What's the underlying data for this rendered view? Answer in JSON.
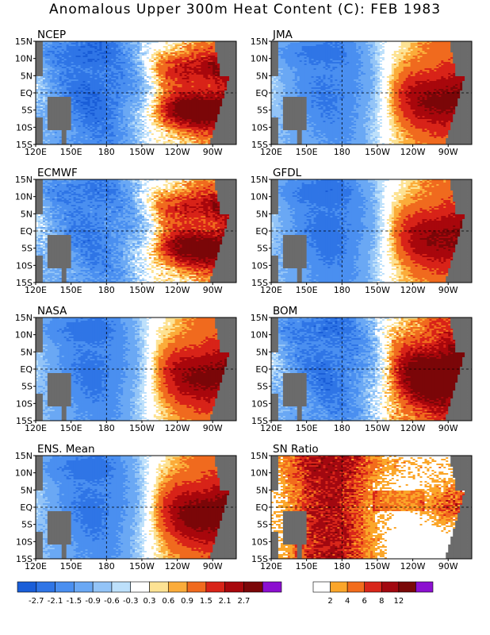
{
  "title": "Anomalous Upper 300m Heat Content (C): FEB 1983",
  "chart_data": {
    "type": "heatmap",
    "x_ticks": [
      "120E",
      "150E",
      "180",
      "150W",
      "120W",
      "90W"
    ],
    "y_ticks": [
      "15N",
      "10N",
      "5N",
      "EQ",
      "5S",
      "10S",
      "15S"
    ],
    "lon_range": [
      120,
      290
    ],
    "lat_range": [
      -15,
      15
    ],
    "panels": [
      {
        "name": "NCEP",
        "east_peak": 3.0,
        "west_min": -2.6,
        "warm_split": true,
        "noise": 0.6
      },
      {
        "name": "JMA",
        "east_peak": 2.4,
        "west_min": -2.2,
        "warm_split": false,
        "noise": 0.3
      },
      {
        "name": "ECMWF",
        "east_peak": 2.8,
        "west_min": -2.2,
        "warm_split": true,
        "noise": 0.7
      },
      {
        "name": "GFDL",
        "east_peak": 2.3,
        "west_min": -2.4,
        "warm_split": false,
        "noise": 0.3
      },
      {
        "name": "NASA",
        "east_peak": 2.4,
        "west_min": -2.3,
        "warm_split": false,
        "noise": 0.3
      },
      {
        "name": "BOM",
        "east_peak": 3.2,
        "west_min": -2.4,
        "warm_split": false,
        "noise": 0.7
      },
      {
        "name": "ENS. Mean",
        "east_peak": 2.6,
        "west_min": -2.3,
        "warm_split": false,
        "noise": 0.3
      }
    ],
    "sn_panel": {
      "name": "SN Ratio"
    },
    "anomaly_colorbar": {
      "labels": [
        "-2.7",
        "-2.1",
        "-1.5",
        "-0.9",
        "-0.6",
        "-0.3",
        "0.3",
        "0.6",
        "0.9",
        "1.5",
        "2.1",
        "2.7"
      ],
      "colors": [
        "#1a5ed8",
        "#2f75e6",
        "#4a8ff0",
        "#6aa8f4",
        "#93c4f7",
        "#bde0fb",
        "#ffffff",
        "#fde293",
        "#fbac3a",
        "#f06a1e",
        "#d82318",
        "#a8070c",
        "#7b0608",
        "#8c0fd0"
      ]
    },
    "sn_colorbar": {
      "labels": [
        "2",
        "4",
        "6",
        "8",
        "12"
      ],
      "colors": [
        "#ffffff",
        "#fba62a",
        "#f26c1c",
        "#d8261a",
        "#a20810",
        "#7a0808",
        "#8c10d0"
      ]
    },
    "land_color": "#6b6b6b"
  }
}
